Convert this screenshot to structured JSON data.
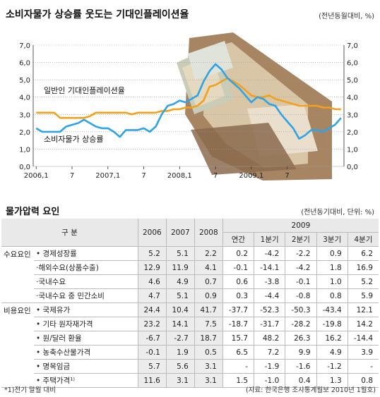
{
  "chart_data": {
    "type": "line",
    "title": "소비자물가 상승률 웃도는 기대인플레이션율",
    "unit": "(전년동월대비, %)",
    "ylim": [
      0,
      7
    ],
    "y_ticks": [
      "0,0",
      "1,0",
      "2,0",
      "3,0",
      "4,0",
      "5,0",
      "6,0",
      "7,0"
    ],
    "x_ticks": [
      "2006,1",
      "7",
      "2007,1",
      "7",
      "2008,1",
      "7",
      "2009,1",
      "7"
    ],
    "series": [
      {
        "name": "일반인 기대인플레이션율",
        "color": "#f0a11e",
        "values": [
          3.1,
          3.1,
          3.1,
          3.1,
          2.8,
          2.8,
          2.8,
          2.8,
          2.8,
          2.9,
          3.1,
          3.1,
          3.1,
          3.1,
          3.1,
          3.1,
          3.0,
          3.1,
          3.1,
          3.1,
          3.1,
          3.2,
          3.2,
          3.3,
          3.3,
          3.4,
          3.4,
          3.5,
          3.8,
          4.6,
          4.7,
          4.9,
          5.1,
          4.9,
          4.7,
          4.4,
          4.1,
          4.0,
          4.0,
          4.1,
          3.9,
          3.8,
          3.7,
          3.6,
          3.5,
          3.5,
          3.5,
          3.5,
          3.4,
          3.4,
          3.3,
          3.3
        ]
      },
      {
        "name": "소비자물가 상승률",
        "color": "#2ea3e6",
        "values": [
          2.2,
          2.0,
          2.0,
          2.0,
          2.0,
          2.3,
          2.4,
          2.5,
          2.7,
          2.5,
          2.3,
          2.2,
          2.2,
          2.0,
          1.7,
          2.1,
          2.1,
          2.1,
          2.2,
          2.0,
          2.3,
          3.0,
          3.5,
          3.6,
          3.8,
          3.7,
          3.9,
          4.1,
          4.9,
          5.5,
          5.9,
          5.6,
          5.1,
          4.8,
          4.5,
          4.1,
          3.7,
          4.0,
          3.9,
          3.6,
          3.5,
          3.0,
          2.6,
          2.2,
          1.6,
          1.8,
          2.1,
          2.1,
          2.0,
          2.2,
          2.4,
          2.8
        ]
      }
    ],
    "annotations": [
      "일반인 기대인플레이션율",
      "소비자물가 상승률"
    ]
  },
  "table": {
    "title": "물가압력 요인",
    "unit": "(전년동기대비, 단위: %)",
    "header": {
      "gubun": "구 분",
      "y2006": "2006",
      "y2007": "2007",
      "y2008": "2008",
      "y2009": "2009",
      "q": [
        "연간",
        "1분기",
        "2분기",
        "3분기",
        "4분기"
      ]
    },
    "groups": [
      {
        "label": "수요요인",
        "rows": [
          {
            "name": "• 경제성장률",
            "v": [
              "5.2",
              "5.1",
              "2.2",
              "0.2",
              "-4.2",
              "-2.2",
              "0.9",
              "6.2"
            ]
          },
          {
            "name": "·해외수요(상품수출)",
            "v": [
              "12.9",
              "11.9",
              "4.1",
              "-0.1",
              "-14.1",
              "-4.2",
              "1.8",
              "16.9"
            ]
          },
          {
            "name": "·국내수요",
            "v": [
              "4.6",
              "4.9",
              "0.7",
              "0.6",
              "-3.8",
              "-0.1",
              "1.0",
              "5.2"
            ]
          },
          {
            "name": "·국내수요 중 민간소비",
            "v": [
              "4.7",
              "5.1",
              "0.9",
              "0.3",
              "-4.4",
              "-0.8",
              "0.8",
              "5.9"
            ]
          }
        ]
      },
      {
        "label": "비용요인",
        "rows": [
          {
            "name": "• 국제유가",
            "v": [
              "24.4",
              "10.4",
              "41.7",
              "-37.7",
              "-52.3",
              "-50.3",
              "-43.4",
              "12.1"
            ]
          },
          {
            "name": "• 기타 원자재가격",
            "v": [
              "23.2",
              "14.1",
              "7.5",
              "-18.7",
              "-31.7",
              "-28.2",
              "-19.8",
              "14.2"
            ]
          },
          {
            "name": "• 원/달러 환율",
            "v": [
              "-6.7",
              "-2.7",
              "18.7",
              "15.7",
              "48.2",
              "26.3",
              "16.2",
              "-14.4"
            ]
          },
          {
            "name": "• 농축수산물가격",
            "v": [
              "-0.1",
              "1.9",
              "0.5",
              "6.5",
              "7.2",
              "9.9",
              "4.9",
              "3.9"
            ]
          },
          {
            "name": "• 명목임금",
            "v": [
              "5.7",
              "5.6",
              "3.1",
              "-",
              "-1.9",
              "-1.6",
              "-1.2",
              "-"
            ]
          },
          {
            "name": "• 주택가격¹⁾",
            "v": [
              "11.6",
              "3.1",
              "3.1",
              "1.5",
              "-1.0",
              "0.4",
              "1.3",
              "0.8"
            ]
          }
        ]
      }
    ],
    "footnote": "*1)전기 말월 대비",
    "source": "(자료: 한국은행 조사통계월보 2010년 1월호)"
  }
}
